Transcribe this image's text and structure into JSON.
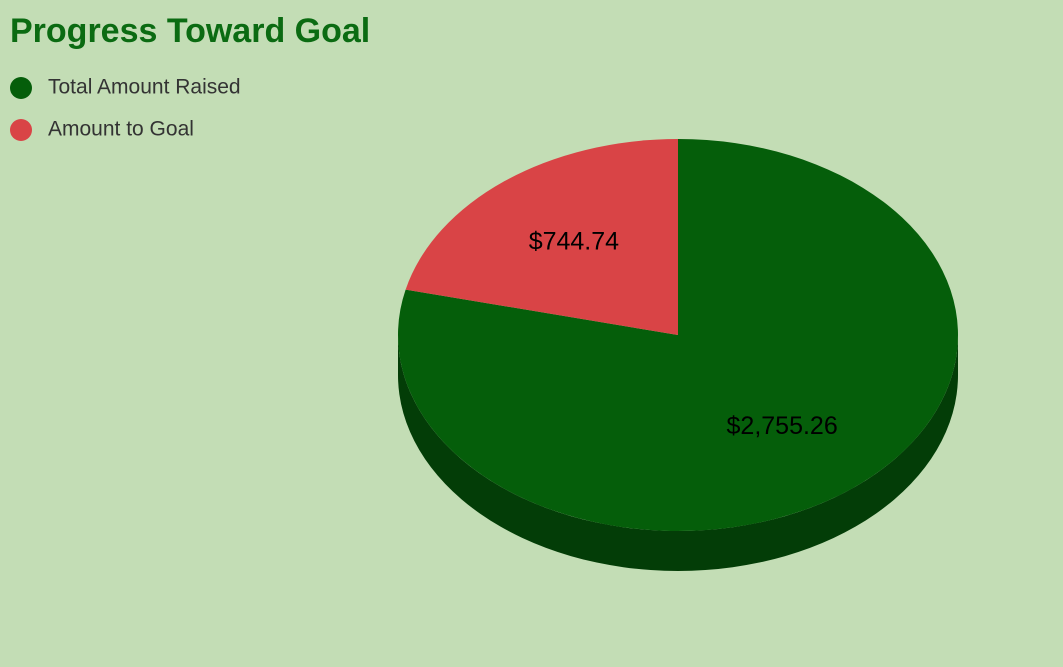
{
  "chart_data": {
    "type": "pie",
    "title": "Progress Toward Goal",
    "categories": [
      "Total Amount Raised",
      "Amount to Goal"
    ],
    "values": [
      2755.26,
      744.74
    ],
    "value_labels": [
      "$2,755.26",
      "$744.74"
    ],
    "colors": [
      "#055e0a",
      "#d94446"
    ],
    "legend": "top-left"
  }
}
